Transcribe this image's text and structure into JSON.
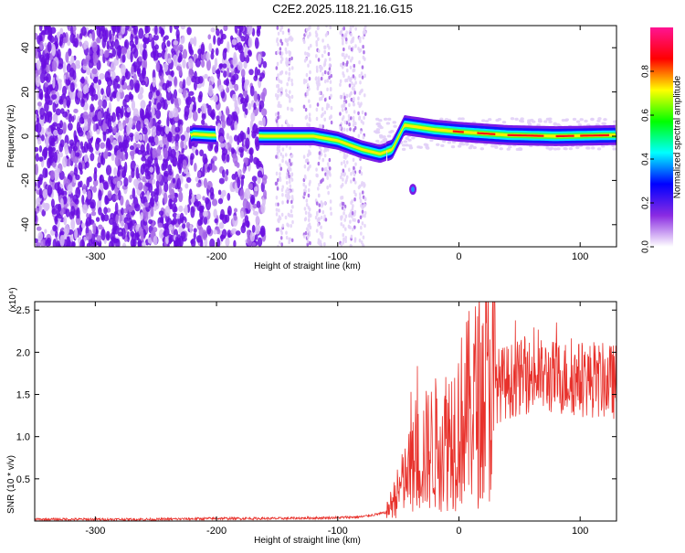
{
  "title": "C2E2.2025.118.21.16.G15",
  "chart_data": [
    {
      "type": "heatmap",
      "xlabel": "Height of straight line (km)",
      "ylabel": "Frequency (Hz)",
      "xlim": [
        -350,
        130
      ],
      "ylim": [
        -50,
        50
      ],
      "x_ticks": [
        -300,
        -200,
        -100,
        0,
        100
      ],
      "y_ticks": [
        -40,
        -20,
        0,
        20,
        40
      ],
      "colorbar": {
        "label": "Normalized spectral amplitude",
        "range": [
          0,
          1
        ],
        "ticks": [
          "0.0",
          "0.2",
          "0.4",
          "0.6",
          "0.8"
        ],
        "colors": [
          "#ffffff",
          "#8a2be2",
          "#0000ff",
          "#00ffff",
          "#00ff00",
          "#ffff00",
          "#ff0000",
          "#ff1493"
        ]
      },
      "trace": [
        {
          "x": -220,
          "y": 1.0
        },
        {
          "x": -205,
          "y": 0.5
        },
        {
          "x": -160,
          "y": 0.0
        },
        {
          "x": -120,
          "y": 0.0
        },
        {
          "x": -100,
          "y": -2.0
        },
        {
          "x": -80,
          "y": -6.0
        },
        {
          "x": -65,
          "y": -8.0
        },
        {
          "x": -55,
          "y": -6.0
        },
        {
          "x": -45,
          "y": 5.0
        },
        {
          "x": -20,
          "y": 3.0
        },
        {
          "x": 0,
          "y": 2.0
        },
        {
          "x": 40,
          "y": 0.5
        },
        {
          "x": 80,
          "y": 0.0
        },
        {
          "x": 130,
          "y": 0.5
        }
      ],
      "spot": {
        "x": -38,
        "y": -24
      }
    },
    {
      "type": "line",
      "xlabel": "Height of straight line (km)",
      "ylabel": "SNR (10 * v/v)",
      "y_multiplier": "(x10⁴)",
      "xlim": [
        -350,
        130
      ],
      "ylim": [
        0,
        2.6
      ],
      "x_ticks": [
        -300,
        -200,
        -100,
        0,
        100
      ],
      "y_ticks": [
        0.5,
        1.0,
        1.5,
        2.0,
        2.5
      ],
      "color": "#e8312b",
      "series": [
        {
          "x": [
            -350,
            -300,
            -250,
            -200,
            -150,
            -100,
            -80,
            -60,
            -50,
            -40,
            -30,
            -20,
            -10,
            0,
            10,
            20,
            30,
            40,
            50,
            60,
            80,
            100,
            130
          ],
          "y": [
            0.02,
            0.02,
            0.02,
            0.03,
            0.03,
            0.04,
            0.05,
            0.1,
            0.35,
            0.6,
            0.8,
            0.9,
            1.0,
            1.15,
            1.35,
            1.5,
            1.6,
            1.65,
            1.7,
            1.72,
            1.7,
            1.68,
            1.65
          ]
        }
      ]
    }
  ]
}
